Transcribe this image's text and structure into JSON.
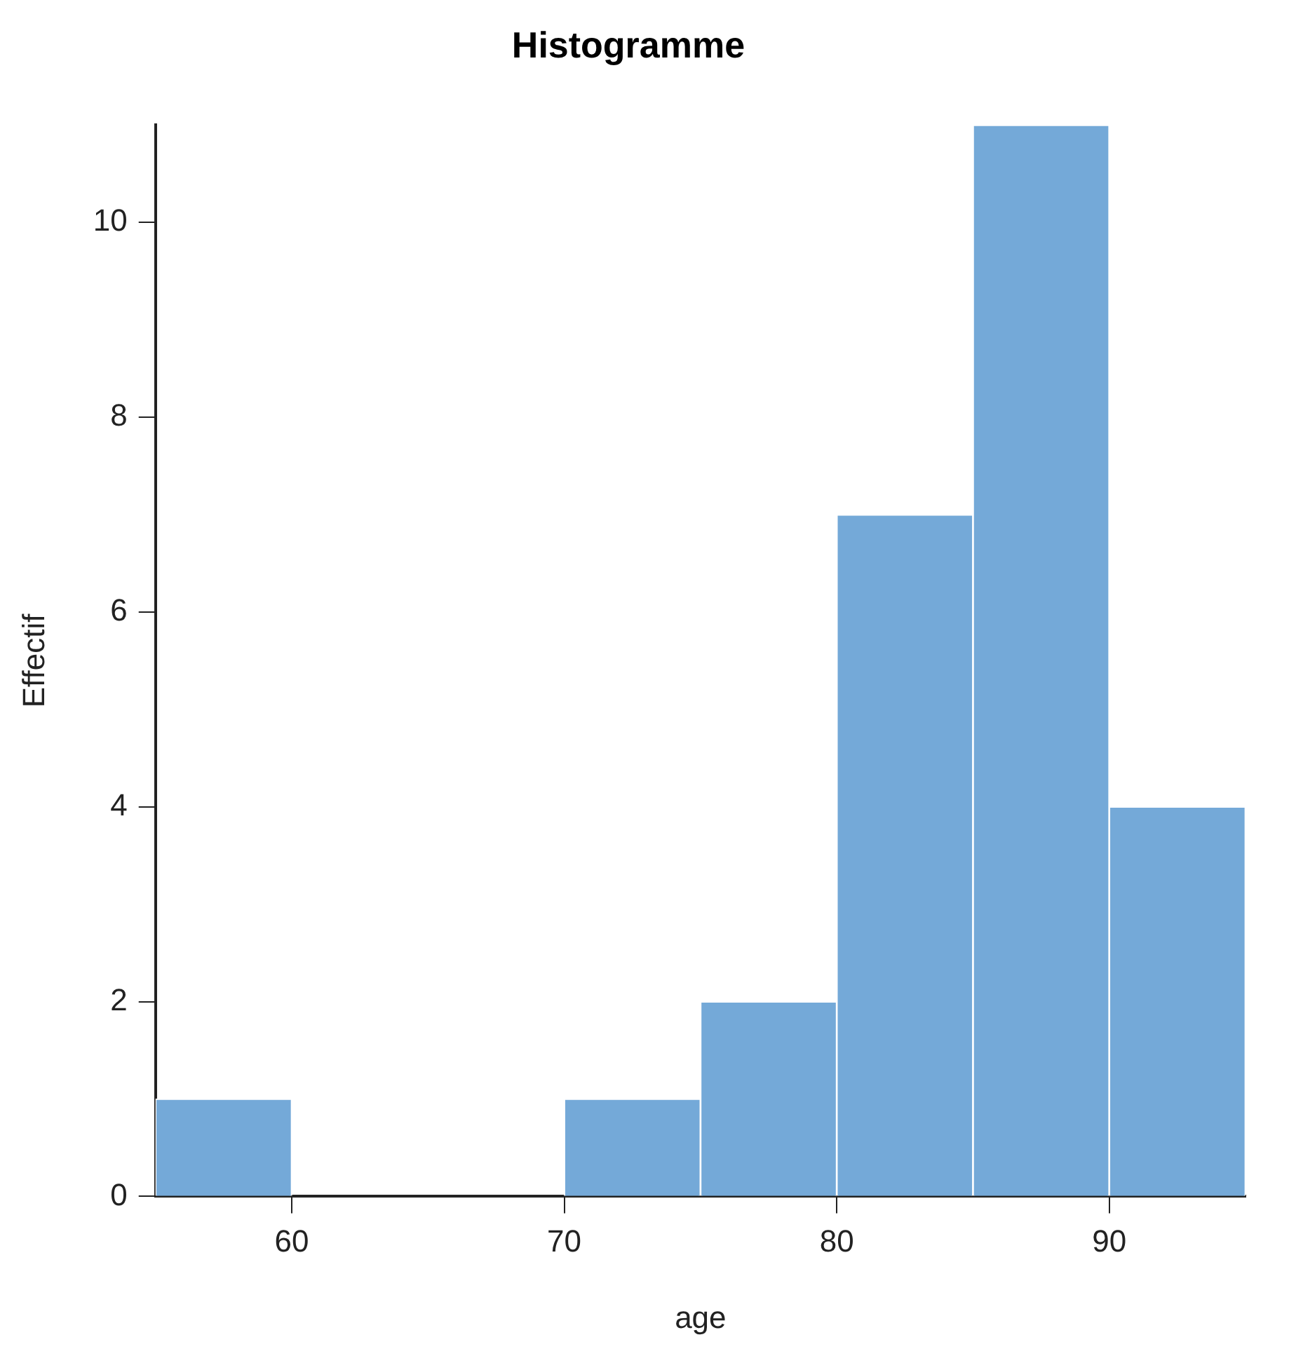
{
  "chart_data": {
    "type": "histogram",
    "title": "Histogramme",
    "xlabel": "age",
    "ylabel": "Effectif",
    "bins": [
      55,
      60,
      65,
      70,
      75,
      80,
      85,
      90,
      95
    ],
    "values": [
      1,
      0,
      0,
      1,
      2,
      7,
      11,
      4
    ],
    "color": "#74a9d8",
    "xlim": [
      55,
      95
    ],
    "xticks": [
      60,
      70,
      80,
      90
    ],
    "ylim": [
      0,
      11
    ],
    "yticks": [
      0,
      2,
      4,
      6,
      8,
      10
    ],
    "grid": false,
    "legend": false
  }
}
